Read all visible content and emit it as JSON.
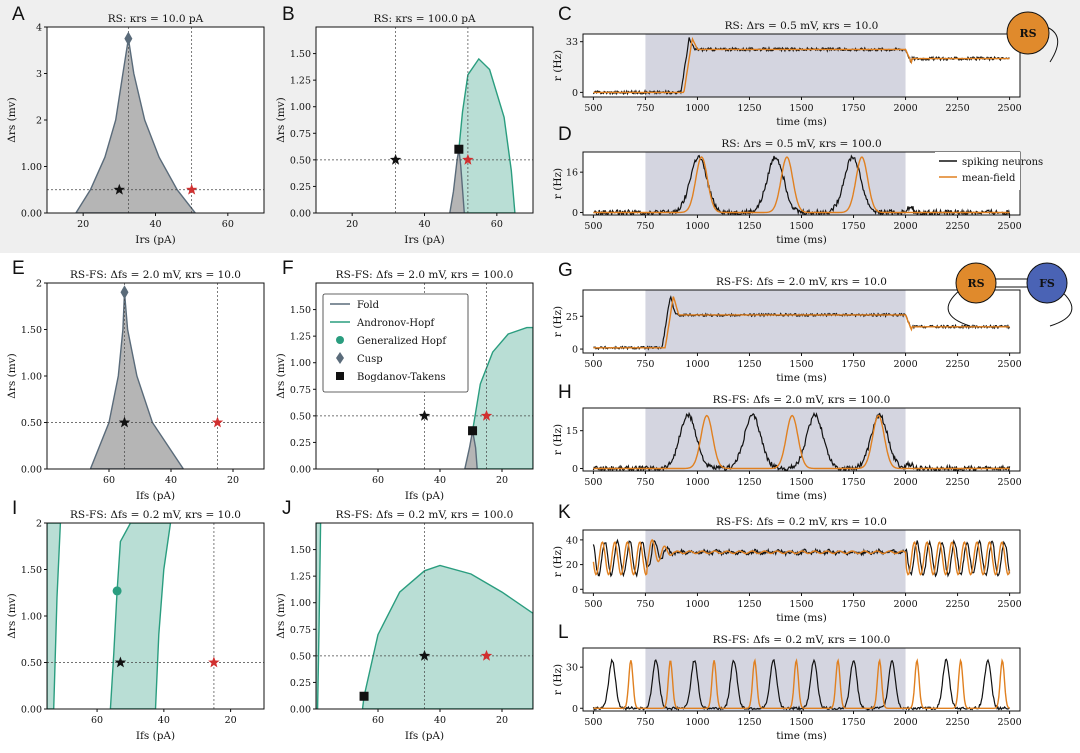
{
  "colors": {
    "fold": "#5a6b7a",
    "hopf": "#2a9d7f",
    "hopf_fill": "#b9ded5",
    "fold_fill": "#b5b5b5",
    "star_black": "#111111",
    "star_red": "#d03030",
    "spiking": "#111111",
    "meanfield": "#e08020",
    "shade": "#d4d5e0",
    "rs_node": "#e08a2c",
    "fs_node": "#4a63b5"
  },
  "legend": {
    "bif": [
      "Fold",
      "Andronov-Hopf",
      "Generalized Hopf",
      "Cusp",
      "Bogdanov-Takens"
    ],
    "time": [
      "spiking neurons",
      "mean-field"
    ]
  },
  "network_diagrams": {
    "top": [
      "RS"
    ],
    "bottom": [
      "RS",
      "FS"
    ]
  },
  "chart_data": [
    {
      "id": "A",
      "type": "area",
      "title": "RS: κrs = 10.0 pA",
      "xlabel": "Irs (pA)",
      "ylabel": "Δrs (mv)",
      "xlim": [
        10,
        70
      ],
      "ylim": [
        0,
        4
      ],
      "xticks": [
        20,
        40,
        60
      ],
      "yticks": [
        0,
        1,
        2,
        3,
        4
      ],
      "fold_region": [
        [
          18,
          0
        ],
        [
          22,
          0.5
        ],
        [
          26,
          1.2
        ],
        [
          29,
          2
        ],
        [
          31,
          3
        ],
        [
          32.5,
          3.75
        ],
        [
          34,
          3
        ],
        [
          37,
          2
        ],
        [
          41,
          1.2
        ],
        [
          46,
          0.5
        ],
        [
          51,
          0
        ]
      ],
      "hopf_region": [],
      "cusp": [
        32.5,
        3.75
      ],
      "bt": [],
      "gh": [],
      "black_star": [
        30,
        0.5
      ],
      "red_star": [
        50,
        0.5
      ],
      "vlines": [
        32.5,
        50
      ],
      "hline": 0.5
    },
    {
      "id": "B",
      "type": "area",
      "title": "RS: κrs = 100.0 pA",
      "xlabel": "Irs (pA)",
      "ylabel": "Δrs (mv)",
      "xlim": [
        10,
        70
      ],
      "ylim": [
        0,
        1.75
      ],
      "xticks": [
        20,
        40,
        60
      ],
      "yticks": [
        0,
        0.25,
        0.5,
        0.75,
        1.0,
        1.25,
        1.5
      ],
      "fold_region": [
        [
          47,
          0
        ],
        [
          48,
          0.2
        ],
        [
          49,
          0.5
        ],
        [
          49.5,
          0.6
        ],
        [
          50,
          0.45
        ],
        [
          51,
          0
        ]
      ],
      "hopf_region": [
        [
          49.5,
          0
        ],
        [
          49.5,
          0.6
        ],
        [
          50.5,
          0.95
        ],
        [
          52,
          1.3
        ],
        [
          55,
          1.45
        ],
        [
          58,
          1.35
        ],
        [
          62,
          0.9
        ],
        [
          64,
          0.4
        ],
        [
          65,
          0
        ]
      ],
      "cusp": [],
      "bt": [
        [
          49.5,
          0.6
        ]
      ],
      "gh": [],
      "black_star": [
        32,
        0.5
      ],
      "red_star": [
        52,
        0.5
      ],
      "vlines": [
        32,
        52
      ],
      "hline": 0.5
    },
    {
      "id": "E",
      "type": "area",
      "title": "RS-FS: Δfs = 2.0 mV, κrs = 10.0",
      "xlabel": "Ifs (pA)",
      "ylabel": "Δrs (mv)",
      "xlim": [
        80,
        10
      ],
      "ylim": [
        0,
        2
      ],
      "xticks": [
        60,
        40,
        20
      ],
      "yticks": [
        0,
        0.5,
        1.0,
        1.5,
        2.0
      ],
      "fold_region": [
        [
          66,
          0
        ],
        [
          60,
          0.5
        ],
        [
          57,
          1.0
        ],
        [
          55.5,
          1.5
        ],
        [
          55,
          1.9
        ],
        [
          54,
          1.5
        ],
        [
          51,
          1.0
        ],
        [
          46,
          0.5
        ],
        [
          36,
          0
        ]
      ],
      "hopf_region": [],
      "cusp": [
        55,
        1.9
      ],
      "bt": [],
      "gh": [],
      "black_star": [
        55,
        0.5
      ],
      "red_star": [
        25,
        0.5
      ],
      "vlines": [
        55,
        25
      ],
      "hline": 0.5
    },
    {
      "id": "F",
      "type": "area",
      "title": "RS-FS: Δfs = 2.0 mV, κrs = 100.0",
      "xlabel": "Ifs (pA)",
      "ylabel": "Δrs (mv)",
      "xlim": [
        80,
        10
      ],
      "ylim": [
        0,
        1.75
      ],
      "xticks": [
        60,
        40,
        20
      ],
      "yticks": [
        0,
        0.25,
        0.5,
        0.75,
        1.0,
        1.25,
        1.5
      ],
      "fold_region": [
        [
          32,
          0
        ],
        [
          30.5,
          0.2
        ],
        [
          29.5,
          0.36
        ],
        [
          28.5,
          0.2
        ],
        [
          28,
          0
        ]
      ],
      "hopf_region": [
        [
          29.5,
          0
        ],
        [
          29.5,
          0.36
        ],
        [
          27,
          0.8
        ],
        [
          23,
          1.1
        ],
        [
          18,
          1.27
        ],
        [
          12,
          1.33
        ],
        [
          10,
          1.33
        ],
        [
          10,
          0
        ]
      ],
      "cusp": [],
      "bt": [
        [
          29.5,
          0.36
        ]
      ],
      "gh": [],
      "black_star": [
        45,
        0.5
      ],
      "red_star": [
        25,
        0.5
      ],
      "vlines": [
        45,
        25
      ],
      "hline": 0.5
    },
    {
      "id": "I",
      "type": "area",
      "title": "RS-FS: Δfs = 0.2 mV, κrs = 10.0",
      "xlabel": "Ifs (pA)",
      "ylabel": "Δrs (mv)",
      "xlim": [
        75,
        10
      ],
      "ylim": [
        0,
        2
      ],
      "xticks": [
        60,
        40,
        20
      ],
      "yticks": [
        0,
        0.5,
        1.0,
        1.5,
        2.0
      ],
      "fold_region": [],
      "hopf_region": [
        [
          75,
          0
        ],
        [
          75,
          2
        ],
        [
          71,
          2
        ],
        [
          72,
          1.2
        ],
        [
          73,
          0
        ]
      ],
      "hopf_region2": [
        [
          56,
          0
        ],
        [
          55,
          0.6
        ],
        [
          54,
          1.27
        ],
        [
          53,
          1.8
        ],
        [
          50,
          2
        ],
        [
          38,
          2
        ],
        [
          40,
          1.5
        ],
        [
          41.5,
          0.8
        ],
        [
          42.5,
          0
        ]
      ],
      "cusp": [],
      "bt": [],
      "gh": [
        [
          54,
          1.27
        ]
      ],
      "black_star": [
        53,
        0.5
      ],
      "red_star": [
        25,
        0.5
      ],
      "vlines": [
        25
      ],
      "hline": 0.5
    },
    {
      "id": "J",
      "type": "area",
      "title": "RS-FS: Δfs = 0.2 mV, κrs = 100.0",
      "xlabel": "Ifs (pA)",
      "ylabel": "Δrs (mv)",
      "xlim": [
        80,
        10
      ],
      "ylim": [
        0,
        1.75
      ],
      "xticks": [
        60,
        40,
        20
      ],
      "yticks": [
        0,
        0.25,
        0.5,
        0.75,
        1.0,
        1.25,
        1.5
      ],
      "fold_region": [],
      "hopf_region": [
        [
          80,
          0
        ],
        [
          80,
          1.75
        ],
        [
          78.5,
          1.75
        ],
        [
          79,
          0.8
        ],
        [
          79.5,
          0
        ]
      ],
      "hopf_region2": [
        [
          65,
          0
        ],
        [
          64.5,
          0.12
        ],
        [
          60,
          0.7
        ],
        [
          53,
          1.1
        ],
        [
          45,
          1.3
        ],
        [
          40,
          1.35
        ],
        [
          30,
          1.27
        ],
        [
          20,
          1.1
        ],
        [
          10,
          0.9
        ],
        [
          10,
          0
        ]
      ],
      "cusp": [],
      "bt": [
        [
          64.5,
          0.12
        ]
      ],
      "gh": [],
      "black_star": [
        45,
        0.5
      ],
      "red_star": [
        25,
        0.5
      ],
      "vlines": [
        45
      ],
      "hline": 0.5
    },
    {
      "id": "C",
      "type": "line",
      "title": "RS: Δrs = 0.5 mV, κrs = 10.0",
      "xlabel": "time (ms)",
      "ylabel": "r (Hz)",
      "xlim": [
        450,
        2550
      ],
      "ylim": [
        -3,
        38
      ],
      "yticks": [
        0,
        33
      ],
      "xticks": [
        500,
        750,
        1000,
        1250,
        1500,
        1750,
        2000,
        2250,
        2500
      ],
      "stim": [
        750,
        2000
      ],
      "pattern": "step",
      "base": 0,
      "plateau": 28,
      "after": 22,
      "onset": 960,
      "overshoot": 35
    },
    {
      "id": "D",
      "type": "line",
      "title": "RS: Δrs = 0.5 mV, κrs = 100.0",
      "xlabel": "time (ms)",
      "ylabel": "r (Hz)",
      "xlim": [
        450,
        2550
      ],
      "ylim": [
        -1,
        24
      ],
      "yticks": [
        0,
        16
      ],
      "xticks": [
        500,
        750,
        1000,
        1250,
        1500,
        1750,
        2000,
        2250,
        2500
      ],
      "stim": [
        750,
        2000
      ],
      "pattern": "bursts",
      "spk_peaks": [
        1005,
        1375,
        1745
      ],
      "mf_peaks": [
        1020,
        1430,
        1790
      ],
      "peak": 22
    },
    {
      "id": "G",
      "type": "line",
      "title": "RS-FS: Δfs = 2.0 mV, κrs = 10.0",
      "xlabel": "time (ms)",
      "ylabel": "r (Hz)",
      "xlim": [
        450,
        2550
      ],
      "ylim": [
        -3,
        45
      ],
      "yticks": [
        0,
        25
      ],
      "xticks": [
        500,
        750,
        1000,
        1250,
        1500,
        1750,
        2000,
        2250,
        2500
      ],
      "stim": [
        750,
        2000
      ],
      "pattern": "step",
      "base": 1,
      "plateau": 26,
      "after": 17,
      "onset": 870,
      "overshoot": 40
    },
    {
      "id": "H",
      "type": "line",
      "title": "RS-FS: Δfs = 2.0 mV, κrs = 100.0",
      "xlabel": "time (ms)",
      "ylabel": "r (Hz)",
      "xlim": [
        450,
        2550
      ],
      "ylim": [
        -1,
        24
      ],
      "yticks": [
        0,
        15
      ],
      "xticks": [
        500,
        750,
        1000,
        1250,
        1500,
        1750,
        2000,
        2250,
        2500
      ],
      "stim": [
        750,
        2000
      ],
      "pattern": "bursts",
      "spk_peaks": [
        955,
        1265,
        1565,
        1875
      ],
      "mf_peaks": [
        1045,
        1455,
        1870
      ],
      "peak": 21
    },
    {
      "id": "K",
      "type": "line",
      "title": "RS-FS: Δfs = 0.2 mV, κrs = 10.0",
      "xlabel": "time (ms)",
      "ylabel": "r (Hz)",
      "xlim": [
        450,
        2550
      ],
      "ylim": [
        -3,
        48
      ],
      "yticks": [
        0,
        20,
        40
      ],
      "xticks": [
        500,
        750,
        1000,
        1250,
        1500,
        1750,
        2000,
        2250,
        2500
      ],
      "stim": [
        750,
        2000
      ],
      "pattern": "osc",
      "plateau": 30,
      "osc_amp": 12,
      "osc_period": 60
    },
    {
      "id": "L",
      "type": "line",
      "title": "RS-FS: Δfs = 0.2 mV, κrs = 100.0",
      "xlabel": "time (ms)",
      "ylabel": "r (Hz)",
      "xlim": [
        450,
        2550
      ],
      "ylim": [
        -2,
        44
      ],
      "yticks": [
        0,
        30
      ],
      "xticks": [
        500,
        750,
        1000,
        1250,
        1500,
        1750,
        2000,
        2250,
        2500
      ],
      "stim": [
        750,
        2000
      ],
      "pattern": "spikes",
      "spk_peaks": [
        590,
        800,
        985,
        1175,
        1365,
        1560,
        1750,
        1935,
        2195,
        2395
      ],
      "mf_peaks": [
        680,
        870,
        1080,
        1275,
        1475,
        1675,
        1875,
        2055,
        2265,
        2465
      ],
      "peak": 35
    }
  ]
}
